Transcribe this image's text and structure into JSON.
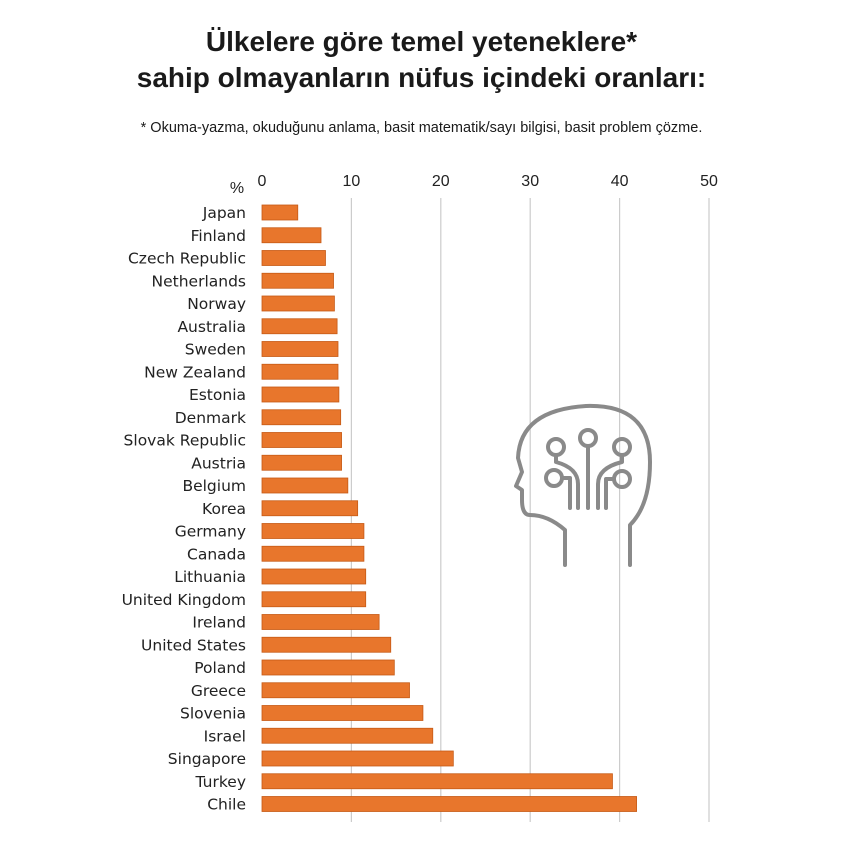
{
  "title_lines": [
    "Ülkelere göre temel yeteneklere*",
    "sahip olmayanların nüfus içindeki oranları:"
  ],
  "footnote": "* Okuma-yazma, okuduğunu anlama, basit matematik/sayı bilgisi, basit problem çözme.",
  "icon": "head-circuit-icon",
  "colors": {
    "bar": "#E8762C",
    "bar_edge": "#C65A16",
    "grid": "#cccccc",
    "icon": "#8a8a8a"
  },
  "chart_data": {
    "type": "bar",
    "orientation": "horizontal",
    "unit_label": "%",
    "xlim": [
      0,
      50
    ],
    "xticks": [
      0,
      10,
      20,
      30,
      40,
      50
    ],
    "grid": true,
    "categories": [
      "Japan",
      "Finland",
      "Czech Republic",
      "Netherlands",
      "Norway",
      "Australia",
      "Sweden",
      "New Zealand",
      "Estonia",
      "Denmark",
      "Slovak Republic",
      "Austria",
      "Belgium",
      "Korea",
      "Germany",
      "Canada",
      "Lithuania",
      "United Kingdom",
      "Ireland",
      "United States",
      "Poland",
      "Greece",
      "Slovenia",
      "Israel",
      "Singapore",
      "Turkey",
      "Chile"
    ],
    "values": [
      4.0,
      6.6,
      7.1,
      8.0,
      8.1,
      8.4,
      8.5,
      8.5,
      8.6,
      8.8,
      8.9,
      8.9,
      9.6,
      10.7,
      11.4,
      11.4,
      11.6,
      11.6,
      13.1,
      14.4,
      14.8,
      16.5,
      18.0,
      19.1,
      21.4,
      39.2,
      41.9
    ]
  }
}
